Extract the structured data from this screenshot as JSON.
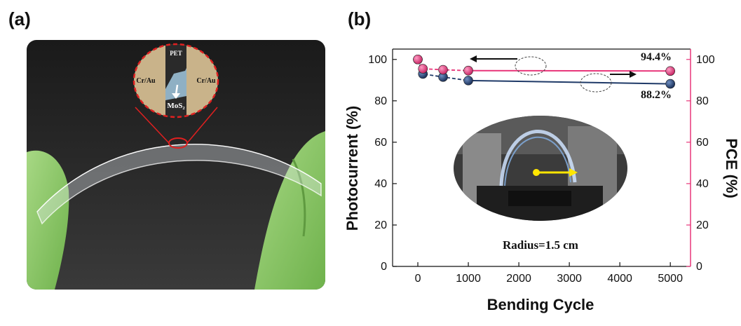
{
  "panels": {
    "a_label": "(a)",
    "b_label": "(b)"
  },
  "photo": {
    "inset_labels": {
      "top": "PET",
      "left": "Cr/Au",
      "right": "Cr/Au",
      "bottom": "MoS₂"
    }
  },
  "chart_data": {
    "type": "line",
    "title": "",
    "xlabel": "Bending Cycle",
    "ylabel_left": "Photocurrent (%)",
    "ylabel_right": "PCE (%)",
    "xlim": [
      -500,
      5400
    ],
    "ylim_left": [
      0,
      105
    ],
    "ylim_right": [
      0,
      105
    ],
    "xticks": [
      0,
      1000,
      2000,
      3000,
      4000,
      5000
    ],
    "yticks": [
      0,
      20,
      40,
      60,
      80,
      100
    ],
    "grid": false,
    "series": [
      {
        "axis": "left",
        "color": "#1f3a68",
        "x": [
          0,
          100,
          500,
          1000,
          5000
        ],
        "y": [
          100,
          93,
          91.5,
          89.8,
          88.2
        ]
      },
      {
        "axis": "right",
        "color": "#e8367a",
        "x": [
          0,
          100,
          500,
          1000,
          5000
        ],
        "y": [
          100,
          95.5,
          95,
          94.6,
          94.4
        ]
      }
    ],
    "annotations": {
      "pce_end_label": "94.4%",
      "photocurrent_end_label": "88.2%",
      "radius_label": "Radius=1.5 cm"
    },
    "colors": {
      "left_axis": "#111111",
      "right_axis": "#e8367a"
    }
  }
}
